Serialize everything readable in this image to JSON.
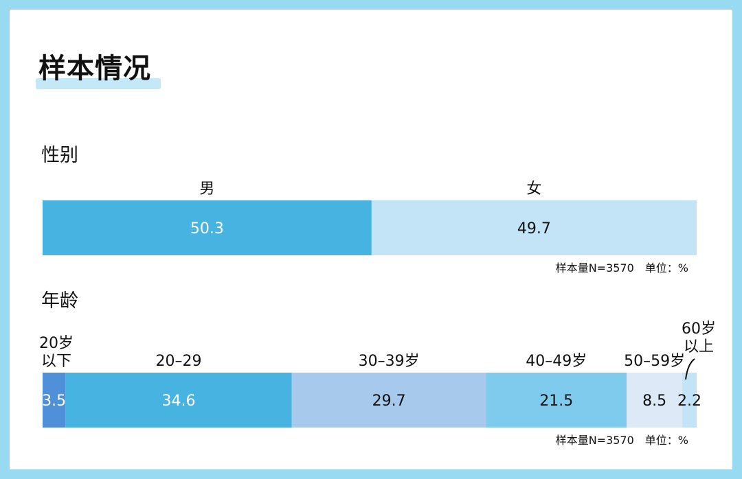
{
  "page": {
    "title": "样本情况",
    "colors": {
      "background": "#99daf3",
      "card": "#ffffff",
      "highlight": "#c3e9f9"
    }
  },
  "chart_data": [
    {
      "type": "bar",
      "orientation": "horizontal-stacked-100",
      "title": "性别",
      "categories": [
        "男",
        "女"
      ],
      "values": [
        50.3,
        49.7
      ],
      "colors": [
        "#46b3e1",
        "#c3e4f6"
      ],
      "value_text_colors": [
        "#ffffff",
        "#111111"
      ],
      "note": "样本量N=3570　单位：%"
    },
    {
      "type": "bar",
      "orientation": "horizontal-stacked-100",
      "title": "年龄",
      "categories": [
        "20岁以下",
        "20–29",
        "30–39岁",
        "40–49岁",
        "50–59岁",
        "60岁以上"
      ],
      "values": [
        3.5,
        34.6,
        29.7,
        21.5,
        8.5,
        2.2
      ],
      "colors": [
        "#4f90d9",
        "#46b3e1",
        "#a6c9ec",
        "#7ecbed",
        "#dde9f7",
        "#c3e4f6"
      ],
      "value_text_colors": [
        "#ffffff",
        "#ffffff",
        "#111111",
        "#111111",
        "#111111",
        "#111111"
      ],
      "note": "样本量N=3570　单位：%"
    }
  ]
}
